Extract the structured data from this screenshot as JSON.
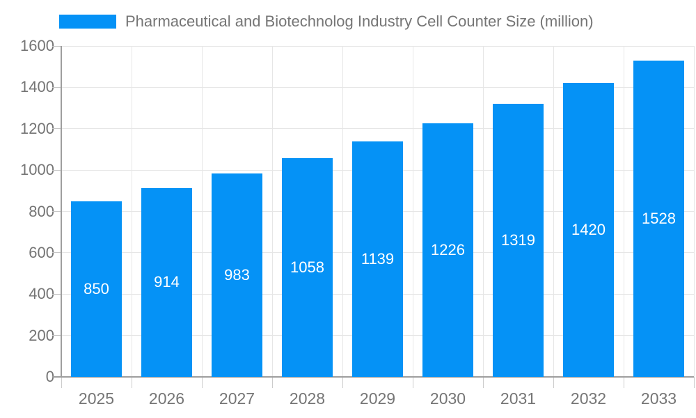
{
  "legend": {
    "label": "Pharmaceutical and Biotechnolog Industry Cell Counter Size (million)"
  },
  "chart_data": {
    "type": "bar",
    "title": "Pharmaceutical and Biotechnolog Industry Cell Counter Size (million)",
    "categories": [
      "2025",
      "2026",
      "2027",
      "2028",
      "2029",
      "2030",
      "2031",
      "2032",
      "2033"
    ],
    "series": [
      {
        "name": "Pharmaceutical and Biotechnolog Industry Cell Counter Size (million)",
        "values": [
          850,
          914,
          983,
          1058,
          1139,
          1226,
          1319,
          1420,
          1528
        ]
      }
    ],
    "values": [
      850,
      914,
      983,
      1058,
      1139,
      1226,
      1319,
      1420,
      1528
    ],
    "value_labels": [
      "850",
      "914",
      "983",
      "1058",
      "1139",
      "1226",
      "1319",
      "1420",
      "1528"
    ],
    "xlabel": "",
    "ylabel": "",
    "ylim": [
      0,
      1600
    ],
    "ytick_step": 200,
    "yticks": [
      "0",
      "200",
      "400",
      "600",
      "800",
      "1000",
      "1200",
      "1400",
      "1600"
    ],
    "grid": true,
    "legend_position": "top",
    "bar_color": "#0592f6",
    "value_label_color": "#ffffff",
    "axis_text_color": "#757575",
    "gridline_color": "#e6e6e6",
    "axis_line_color": "#9e9e9e"
  }
}
